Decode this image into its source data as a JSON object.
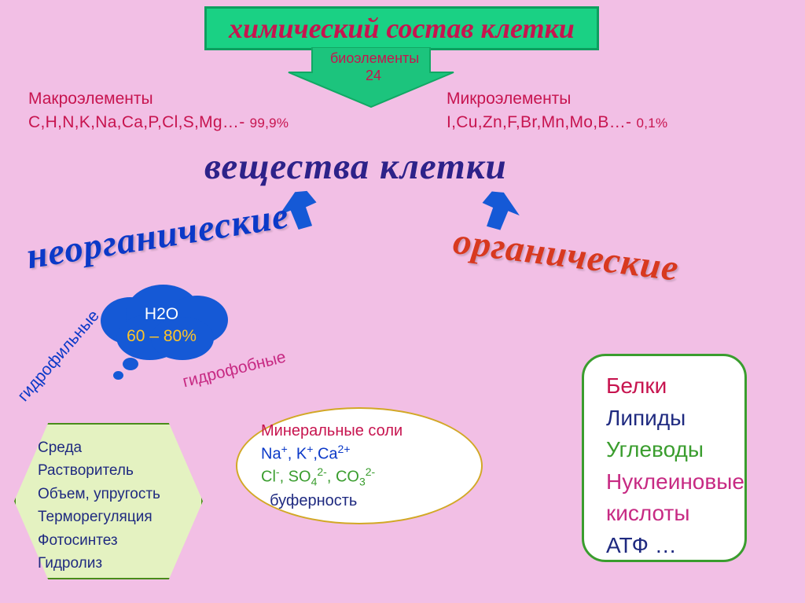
{
  "background_color": "#f2bfe5",
  "title": {
    "text": "химический состав клетки",
    "bg": "#1ad184",
    "border": "#0d9f5f",
    "color": "#c7144f"
  },
  "bioelements_arrow": {
    "label_line1": "биоэлементы",
    "label_line2": "24",
    "border_color": "#1ad184",
    "fill_color": "#1cc47d",
    "text_color": "#c7144f"
  },
  "macro": {
    "label": "Макроэлементы",
    "elements": "C,H,N,K,Na,Ca,P,Cl,S,Mg…- ",
    "percent": "99,9%",
    "color": "#c7144f"
  },
  "micro": {
    "label": "Микроэлементы",
    "elements": "I,Cu,Zn,F,Br,Mn,Mo,B…- ",
    "percent": "0,1%",
    "color": "#c7144f"
  },
  "substances_title": {
    "text": "вещества клетки",
    "color": "#2d2289"
  },
  "inorganic": {
    "text": "неорганические",
    "color": "#0b39c8",
    "rotation": -10
  },
  "organic": {
    "text": "органические",
    "color": "#d8391f",
    "rotation": 8
  },
  "arrow_blue": "#1559d6",
  "hydrophilic": {
    "text": "гидрофильные",
    "color": "#0b39c8",
    "rotation": -48
  },
  "hydrophobic": {
    "text": "гидрофобные",
    "color": "#c72a83",
    "rotation": -14
  },
  "water_cloud": {
    "line1": "Н2О",
    "line2": "60 – 80%",
    "bg": "#1559d6",
    "line1_color": "#ffffff",
    "line2_color": "#ffc527"
  },
  "env_box": {
    "border": "#498c1a",
    "bg": "#e4f2c1",
    "text_color": "#1f2a80",
    "lines": [
      "Среда",
      " Растворитель",
      "Объем, упругость",
      "Терморегуляция",
      "Фотосинтез",
      "Гидролиз"
    ]
  },
  "salts": {
    "border": "#d2a826",
    "lines": [
      {
        "text": "Минеральные соли",
        "color": "#c7144f"
      },
      {
        "parts": [
          {
            "t": "Na",
            "c": "#0b39c8"
          },
          {
            "t": "+",
            "c": "#0b39c8",
            "sup": true
          },
          {
            "t": ", K",
            "c": "#0b39c8"
          },
          {
            "t": "+",
            "c": "#0b39c8",
            "sup": true
          },
          {
            "t": ",Ca",
            "c": "#0b39c8"
          },
          {
            "t": "2+",
            "c": "#0b39c8",
            "sup": true
          }
        ]
      },
      {
        "parts": [
          {
            "t": "Cl",
            "c": "#3a9d2e"
          },
          {
            "t": "-",
            "c": "#3a9d2e",
            "sup": true
          },
          {
            "t": ", SO",
            "c": "#3a9d2e"
          },
          {
            "t": "4",
            "c": "#3a9d2e",
            "sub": true
          },
          {
            "t": "2-",
            "c": "#3a9d2e",
            "sup": true
          },
          {
            "t": ", CO",
            "c": "#3a9d2e"
          },
          {
            "t": "3",
            "c": "#3a9d2e",
            "sub": true
          },
          {
            "t": "2-",
            "c": "#3a9d2e",
            "sup": true
          }
        ]
      },
      {
        "text": "  буферность",
        "color": "#1f2a80"
      }
    ]
  },
  "organics_box": {
    "border": "#3a9d2e",
    "items": [
      {
        "t": "Белки",
        "c": "#c7144f"
      },
      {
        "t": "Липиды",
        "c": "#1f2a80"
      },
      {
        "t": "Углеводы",
        "c": "#3a9d2e"
      },
      {
        "parts": [
          {
            "t": "Нуклеиновые",
            "c": "#c72a83"
          }
        ]
      },
      {
        "parts": [
          {
            "t": "кислоты",
            "c": "#c72a83"
          }
        ]
      },
      {
        "t": "АТФ …",
        "c": "#1f2a80"
      }
    ]
  }
}
